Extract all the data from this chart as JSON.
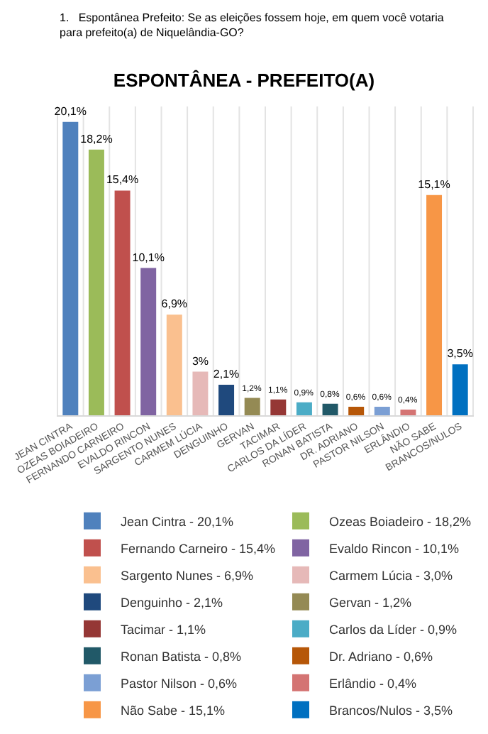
{
  "chart_data": {
    "type": "bar",
    "title": "ESPONTÂNEA - PREFEITO(A)",
    "subtitle": "1.   Espontânea Prefeito: Se as eleições fossem hoje, em quem você votaria para prefeito(a) de Niquelândia-GO?",
    "categories": [
      "JEAN CINTRA",
      "OZEAS BOIADEIRO",
      "FERNANDO CARNEIRO",
      "EVALDO RINCON",
      "SARGENTO NUNES",
      "CARMEM LÚCIA",
      "DENGUINHO",
      "GERVAN",
      "TACIMAR",
      "CARLOS DA LÍDER",
      "RONAN BATISTA",
      "DR. ADRIANO",
      "PASTOR NILSON",
      "ERLÂNDIO",
      "NÃO SABE",
      "BRANCOS/NULOS"
    ],
    "series": [
      {
        "name": "Jean Cintra - 20,1%",
        "color": "#4f81bd",
        "values": [
          20.1,
          null,
          null,
          null,
          null,
          null,
          null,
          null,
          null,
          null,
          null,
          null,
          null,
          null,
          null,
          null
        ],
        "value_labels": [
          "20,1%",
          null,
          null,
          null,
          null,
          null,
          null,
          null,
          null,
          null,
          null,
          null,
          null,
          null,
          null,
          null
        ]
      },
      {
        "name": "Ozeas Boiadeiro - 18,2%",
        "color": "#9bbb59",
        "values": [
          null,
          18.2,
          null,
          null,
          null,
          null,
          null,
          null,
          null,
          null,
          null,
          null,
          null,
          null,
          null,
          null
        ],
        "value_labels": [
          null,
          "18,2%",
          null,
          null,
          null,
          null,
          null,
          null,
          null,
          null,
          null,
          null,
          null,
          null,
          null,
          null
        ]
      },
      {
        "name": "Fernando Carneiro - 15,4%",
        "color": "#c0504d",
        "values": [
          null,
          null,
          15.4,
          null,
          null,
          null,
          null,
          null,
          null,
          null,
          null,
          null,
          null,
          null,
          null,
          null
        ],
        "value_labels": [
          null,
          null,
          "15,4%",
          null,
          null,
          null,
          null,
          null,
          null,
          null,
          null,
          null,
          null,
          null,
          null,
          null
        ]
      },
      {
        "name": "Evaldo Rincon - 10,1%",
        "color": "#8064a2",
        "values": [
          null,
          null,
          null,
          10.1,
          null,
          null,
          null,
          null,
          null,
          null,
          null,
          null,
          null,
          null,
          null,
          null
        ],
        "value_labels": [
          null,
          null,
          null,
          "10,1%",
          null,
          null,
          null,
          null,
          null,
          null,
          null,
          null,
          null,
          null,
          null,
          null
        ]
      },
      {
        "name": "Sargento Nunes - 6,9%",
        "color": "#fac08f",
        "values": [
          null,
          null,
          null,
          null,
          6.9,
          null,
          null,
          null,
          null,
          null,
          null,
          null,
          null,
          null,
          null,
          null
        ],
        "value_labels": [
          null,
          null,
          null,
          null,
          "6,9%",
          null,
          null,
          null,
          null,
          null,
          null,
          null,
          null,
          null,
          null,
          null
        ]
      },
      {
        "name": "Carmem Lúcia - 3,0%",
        "color": "#e6b9b8",
        "values": [
          null,
          null,
          null,
          null,
          null,
          3.0,
          null,
          null,
          null,
          null,
          null,
          null,
          null,
          null,
          null,
          null
        ],
        "value_labels": [
          null,
          null,
          null,
          null,
          null,
          "3%",
          null,
          null,
          null,
          null,
          null,
          null,
          null,
          null,
          null,
          null
        ]
      },
      {
        "name": "Denguinho - 2,1%",
        "color": "#1f497d",
        "values": [
          null,
          null,
          null,
          null,
          null,
          null,
          2.1,
          null,
          null,
          null,
          null,
          null,
          null,
          null,
          null,
          null
        ],
        "value_labels": [
          null,
          null,
          null,
          null,
          null,
          null,
          "2,1%",
          null,
          null,
          null,
          null,
          null,
          null,
          null,
          null,
          null
        ]
      },
      {
        "name": "Gervan - 1,2%",
        "color": "#948a54",
        "values": [
          null,
          null,
          null,
          null,
          null,
          null,
          null,
          1.2,
          null,
          null,
          null,
          null,
          null,
          null,
          null,
          null
        ],
        "value_labels": [
          null,
          null,
          null,
          null,
          null,
          null,
          null,
          "1,2%",
          null,
          null,
          null,
          null,
          null,
          null,
          null,
          null
        ]
      },
      {
        "name": "Tacimar - 1,1%",
        "color": "#953735",
        "values": [
          null,
          null,
          null,
          null,
          null,
          null,
          null,
          null,
          1.1,
          null,
          null,
          null,
          null,
          null,
          null,
          null
        ],
        "value_labels": [
          null,
          null,
          null,
          null,
          null,
          null,
          null,
          null,
          "1,1%",
          null,
          null,
          null,
          null,
          null,
          null,
          null
        ]
      },
      {
        "name": "Carlos da Líder - 0,9%",
        "color": "#4bacc6",
        "values": [
          null,
          null,
          null,
          null,
          null,
          null,
          null,
          null,
          null,
          0.9,
          null,
          null,
          null,
          null,
          null,
          null
        ],
        "value_labels": [
          null,
          null,
          null,
          null,
          null,
          null,
          null,
          null,
          null,
          "0,9%",
          null,
          null,
          null,
          null,
          null,
          null
        ]
      },
      {
        "name": "Ronan Batista - 0,8%",
        "color": "#215968",
        "values": [
          null,
          null,
          null,
          null,
          null,
          null,
          null,
          null,
          null,
          null,
          0.8,
          null,
          null,
          null,
          null,
          null
        ],
        "value_labels": [
          null,
          null,
          null,
          null,
          null,
          null,
          null,
          null,
          null,
          null,
          "0,8%",
          null,
          null,
          null,
          null,
          null
        ]
      },
      {
        "name": "Dr. Adriano - 0,6%",
        "color": "#b65708",
        "values": [
          null,
          null,
          null,
          null,
          null,
          null,
          null,
          null,
          null,
          null,
          null,
          0.6,
          null,
          null,
          null,
          null
        ],
        "value_labels": [
          null,
          null,
          null,
          null,
          null,
          null,
          null,
          null,
          null,
          null,
          null,
          "0,6%",
          null,
          null,
          null,
          null
        ]
      },
      {
        "name": "Pastor Nilson - 0,6%",
        "color": "#7b9fd4",
        "values": [
          null,
          null,
          null,
          null,
          null,
          null,
          null,
          null,
          null,
          null,
          null,
          null,
          0.6,
          null,
          null,
          null
        ],
        "value_labels": [
          null,
          null,
          null,
          null,
          null,
          null,
          null,
          null,
          null,
          null,
          null,
          null,
          "0,6%",
          null,
          null,
          null
        ]
      },
      {
        "name": "Erlândio - 0,4%",
        "color": "#d47473",
        "values": [
          null,
          null,
          null,
          null,
          null,
          null,
          null,
          null,
          null,
          null,
          null,
          null,
          null,
          0.4,
          null,
          null
        ],
        "value_labels": [
          null,
          null,
          null,
          null,
          null,
          null,
          null,
          null,
          null,
          null,
          null,
          null,
          null,
          "0,4%",
          null,
          null
        ]
      },
      {
        "name": "Não Sabe - 15,1%",
        "color": "#f79646",
        "values": [
          null,
          null,
          null,
          null,
          null,
          null,
          null,
          null,
          null,
          null,
          null,
          null,
          null,
          null,
          15.1,
          null
        ],
        "value_labels": [
          null,
          null,
          null,
          null,
          null,
          null,
          null,
          null,
          null,
          null,
          null,
          null,
          null,
          null,
          "15,1%",
          null
        ]
      },
      {
        "name": "Brancos/Nulos - 3,5%",
        "color": "#0070c0",
        "values": [
          null,
          null,
          null,
          null,
          null,
          null,
          null,
          null,
          null,
          null,
          null,
          null,
          null,
          null,
          null,
          3.5
        ],
        "value_labels": [
          null,
          null,
          null,
          null,
          null,
          null,
          null,
          null,
          null,
          null,
          null,
          null,
          null,
          null,
          null,
          "3,5%"
        ]
      }
    ],
    "grid": "x",
    "legend": "bottom"
  }
}
